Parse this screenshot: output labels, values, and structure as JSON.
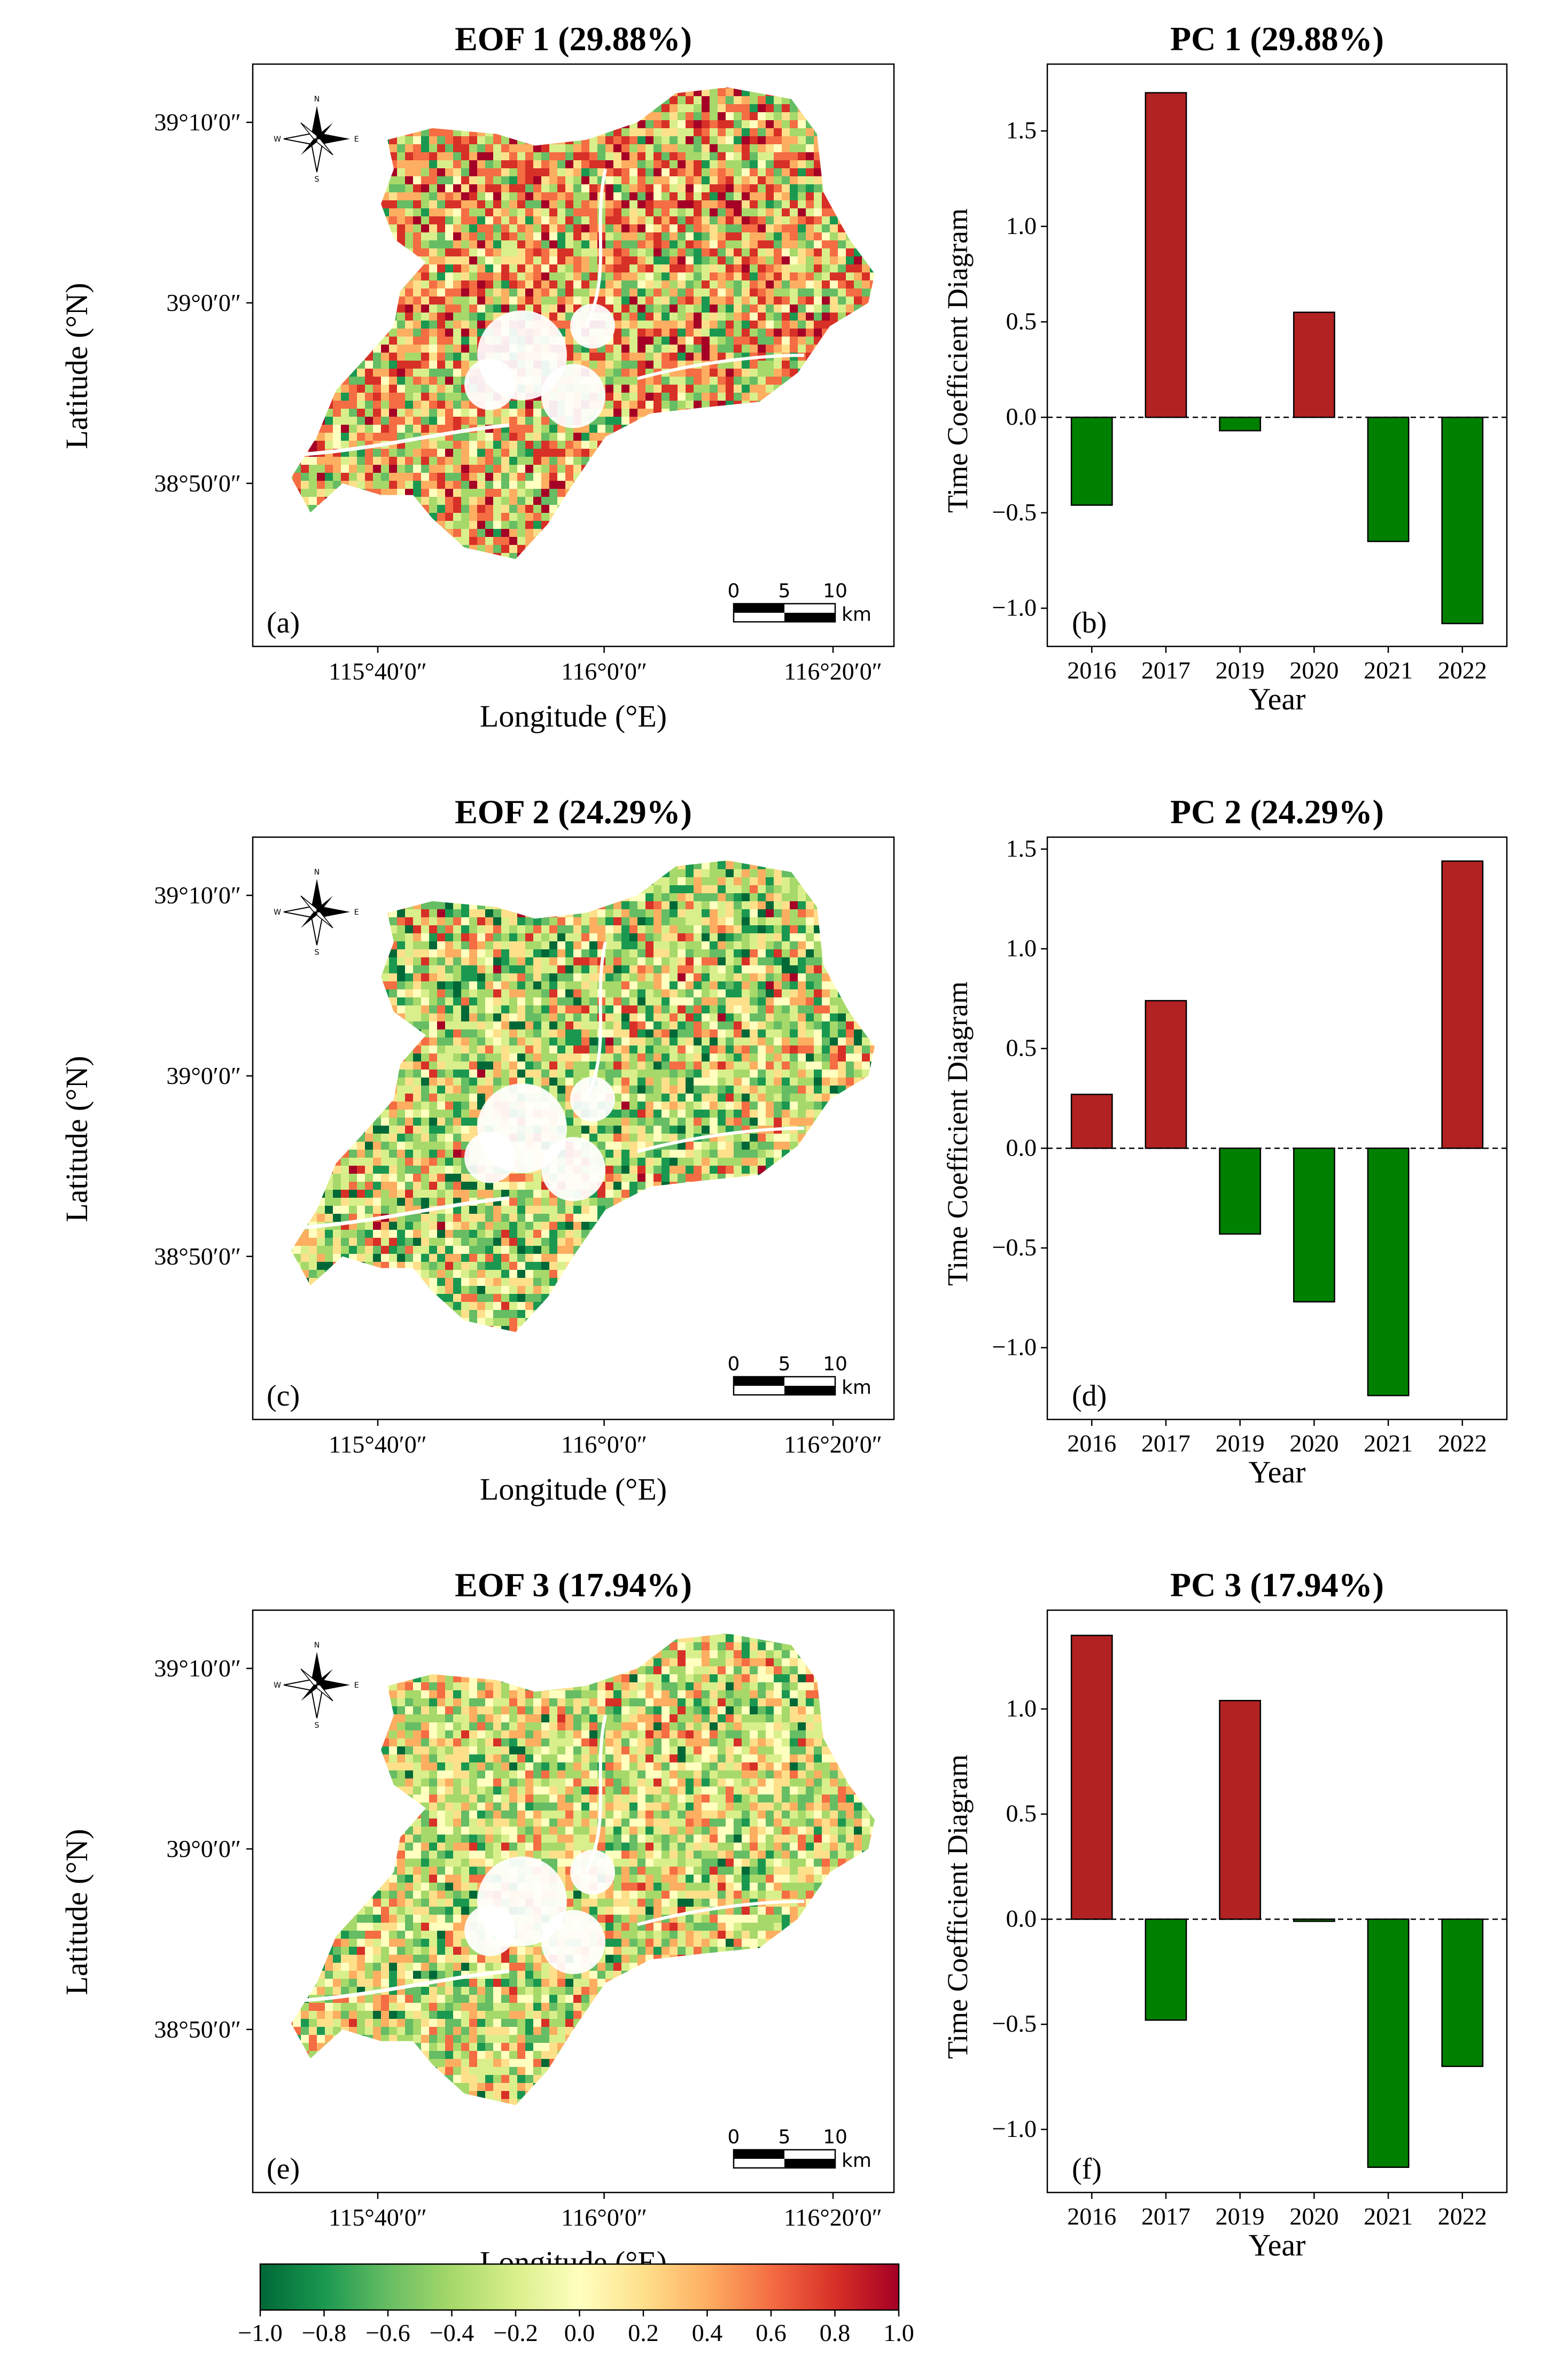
{
  "colors": {
    "positive_bar": "#b22222",
    "negative_bar": "#008000",
    "colormap": [
      "#006837",
      "#1a9850",
      "#66bd63",
      "#a6d96a",
      "#d9ef8b",
      "#ffffbf",
      "#fee08b",
      "#fdae61",
      "#f46d43",
      "#d73027",
      "#a50026"
    ]
  },
  "maps": [
    {
      "title": "EOF 1 (29.88%)",
      "panel_label": "(a)",
      "ylabel": "Latitude (°N)",
      "xlabel": "Longitude (°E)",
      "lat_ticks": [
        "39°10′0″",
        "39°0′0″",
        "38°50′0″"
      ],
      "lon_ticks": [
        "115°40′0″",
        "116°0′0″",
        "116°20′0″"
      ],
      "scalebar": {
        "ticks": [
          "0",
          "5",
          "10"
        ],
        "unit": "km"
      },
      "compass": {
        "n": "N",
        "s": "S",
        "e": "E",
        "w": "W"
      },
      "palette_weights": [
        0.0,
        0.05,
        0.1,
        0.12,
        0.1,
        0.05,
        0.08,
        0.14,
        0.16,
        0.14,
        0.06
      ]
    },
    {
      "title": "EOF 2 (24.29%)",
      "panel_label": "(c)",
      "ylabel": "Latitude (°N)",
      "xlabel": "Longitude (°E)",
      "lat_ticks": [
        "39°10′0″",
        "39°0′0″",
        "38°50′0″"
      ],
      "lon_ticks": [
        "115°40′0″",
        "116°0′0″",
        "116°20′0″"
      ],
      "scalebar": {
        "ticks": [
          "0",
          "5",
          "10"
        ],
        "unit": "km"
      },
      "compass": {
        "n": "N",
        "s": "S",
        "e": "E",
        "w": "W"
      },
      "palette_weights": [
        0.06,
        0.1,
        0.12,
        0.16,
        0.16,
        0.1,
        0.1,
        0.1,
        0.06,
        0.03,
        0.01
      ]
    },
    {
      "title": "EOF 3 (17.94%)",
      "panel_label": "(e)",
      "ylabel": "Latitude (°N)",
      "xlabel": "Longitude (°E)",
      "lat_ticks": [
        "39°10′0″",
        "39°0′0″",
        "38°50′0″"
      ],
      "lon_ticks": [
        "115°40′0″",
        "116°0′0″",
        "116°20′0″"
      ],
      "scalebar": {
        "ticks": [
          "0",
          "5",
          "10"
        ],
        "unit": "km"
      },
      "compass": {
        "n": "N",
        "s": "S",
        "e": "E",
        "w": "W"
      },
      "palette_weights": [
        0.02,
        0.06,
        0.12,
        0.16,
        0.16,
        0.12,
        0.14,
        0.14,
        0.06,
        0.02,
        0.0
      ]
    }
  ],
  "chart_data": [
    {
      "type": "bar",
      "title": "PC 1 (29.88%)",
      "panel_label": "(b)",
      "categories": [
        "2016",
        "2017",
        "2019",
        "2020",
        "2021",
        "2022"
      ],
      "values": [
        -0.46,
        1.7,
        -0.07,
        0.55,
        -0.65,
        -1.08
      ],
      "xlabel": "Year",
      "ylabel": "Time Coefficient Diagram",
      "ylim": [
        -1.2,
        1.85
      ],
      "yticks": [
        -1.0,
        -0.5,
        0.0,
        0.5,
        1.0,
        1.5
      ],
      "ytick_labels": [
        "−1.0",
        "−0.5",
        "0.0",
        "0.5",
        "1.0",
        "1.5"
      ]
    },
    {
      "type": "bar",
      "title": "PC 2 (24.29%)",
      "panel_label": "(d)",
      "categories": [
        "2016",
        "2017",
        "2019",
        "2020",
        "2021",
        "2022"
      ],
      "values": [
        0.27,
        0.74,
        -0.43,
        -0.77,
        -1.24,
        1.44
      ],
      "xlabel": "Year",
      "ylabel": "Time Coefficient Diagram",
      "ylim": [
        -1.36,
        1.56
      ],
      "yticks": [
        -1.0,
        -0.5,
        0.0,
        0.5,
        1.0,
        1.5
      ],
      "ytick_labels": [
        "−1.0",
        "−0.5",
        "0.0",
        "0.5",
        "1.0",
        "1.5"
      ]
    },
    {
      "type": "bar",
      "title": "PC 3 (17.94%)",
      "panel_label": "(f)",
      "categories": [
        "2016",
        "2017",
        "2019",
        "2020",
        "2021",
        "2022"
      ],
      "values": [
        1.35,
        -0.48,
        1.04,
        -0.01,
        -1.18,
        -0.7
      ],
      "xlabel": "Year",
      "ylabel": "Time Coefficient Diagram",
      "ylim": [
        -1.3,
        1.47
      ],
      "yticks": [
        -1.0,
        -0.5,
        0.0,
        0.5,
        1.0
      ],
      "ytick_labels": [
        "−1.0",
        "−0.5",
        "0.0",
        "0.5",
        "1.0"
      ]
    }
  ],
  "colorbar": {
    "vmin": -1.0,
    "vmax": 1.0,
    "ticks": [
      "−1.0",
      "−0.8",
      "−0.6",
      "−0.4",
      "−0.2",
      "0.0",
      "0.2",
      "0.4",
      "0.6",
      "0.8",
      "1.0"
    ]
  }
}
